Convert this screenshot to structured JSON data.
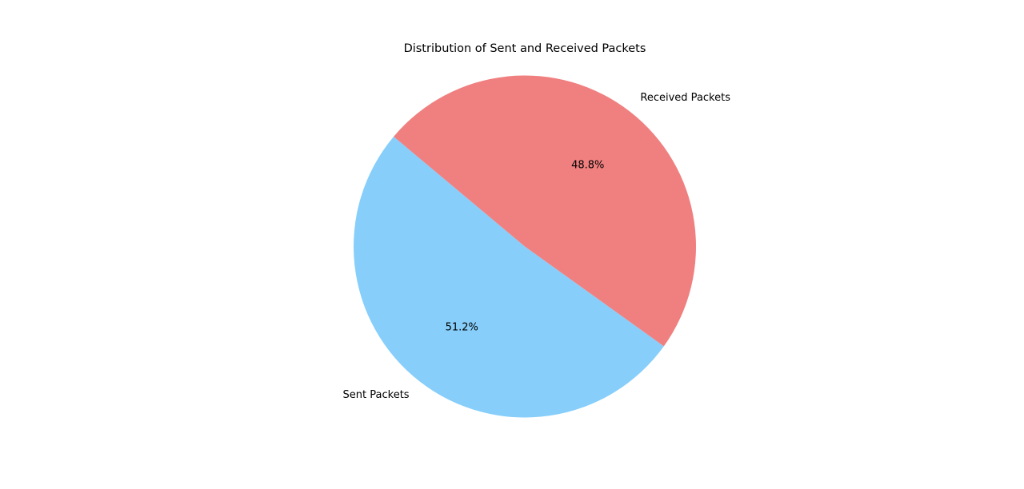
{
  "chart_data": {
    "type": "pie",
    "title": "Distribution of Sent and Received Packets",
    "slices": [
      {
        "label": "Sent Packets",
        "value": 51.2,
        "pct_label": "51.2%",
        "color": "#87CEFA"
      },
      {
        "label": "Received Packets",
        "value": 48.8,
        "pct_label": "48.8%",
        "color": "#F08080"
      }
    ],
    "start_angle_deg": 140,
    "direction": "counterclockwise",
    "legend": "none"
  }
}
